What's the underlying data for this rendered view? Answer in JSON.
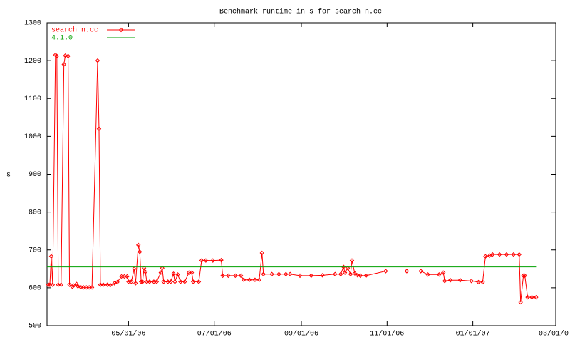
{
  "chart_data": {
    "type": "line",
    "title": "Benchmark runtime in s for search n.cc",
    "y_label": "s",
    "xlim": [
      "2006-03-04",
      "2007-03-01"
    ],
    "xticks": [
      {
        "value": "2006-05-01",
        "label": "05/01/06"
      },
      {
        "value": "2006-07-01",
        "label": "07/01/06"
      },
      {
        "value": "2006-09-01",
        "label": "09/01/06"
      },
      {
        "value": "2006-11-01",
        "label": "11/01/06"
      },
      {
        "value": "2007-01-01",
        "label": "01/01/07"
      },
      {
        "value": "2007-03-01",
        "label": "03/01/07"
      }
    ],
    "ylim": [
      500,
      1300
    ],
    "yticks": [
      500,
      600,
      700,
      800,
      900,
      1000,
      1100,
      1200,
      1300
    ],
    "grid": false,
    "legend": "top-left",
    "series": [
      {
        "name": "search n.cc",
        "color": "#ff0000",
        "markers": true,
        "x": [
          "2006-03-05",
          "2006-03-06",
          "2006-03-07",
          "2006-03-08",
          "2006-03-10",
          "2006-03-11",
          "2006-03-12",
          "2006-03-14",
          "2006-03-16",
          "2006-03-17",
          "2006-03-19",
          "2006-03-20",
          "2006-03-22",
          "2006-03-23",
          "2006-03-25",
          "2006-03-26",
          "2006-03-28",
          "2006-03-30",
          "2006-04-01",
          "2006-04-03",
          "2006-04-05",
          "2006-04-09",
          "2006-04-10",
          "2006-04-11",
          "2006-04-13",
          "2006-04-16",
          "2006-04-18",
          "2006-04-21",
          "2006-04-23",
          "2006-04-26",
          "2006-04-28",
          "2006-04-30",
          "2006-05-01",
          "2006-05-03",
          "2006-05-05",
          "2006-05-06",
          "2006-05-08",
          "2006-05-09",
          "2006-05-10",
          "2006-05-11",
          "2006-05-12",
          "2006-05-13",
          "2006-05-14",
          "2006-05-16",
          "2006-05-19",
          "2006-05-21",
          "2006-05-24",
          "2006-05-25",
          "2006-05-26",
          "2006-05-29",
          "2006-05-31",
          "2006-06-02",
          "2006-06-03",
          "2006-06-05",
          "2006-06-07",
          "2006-06-10",
          "2006-06-13",
          "2006-06-15",
          "2006-06-16",
          "2006-06-20",
          "2006-06-22",
          "2006-06-25",
          "2006-06-30",
          "2006-07-06",
          "2006-07-07",
          "2006-07-11",
          "2006-07-16",
          "2006-07-20",
          "2006-07-22",
          "2006-07-26",
          "2006-07-30",
          "2006-08-02",
          "2006-08-04",
          "2006-08-05",
          "2006-08-11",
          "2006-08-16",
          "2006-08-21",
          "2006-08-24",
          "2006-08-31",
          "2006-09-08",
          "2006-09-16",
          "2006-09-25",
          "2006-09-29",
          "2006-10-01",
          "2006-10-02",
          "2006-10-04",
          "2006-10-06",
          "2006-10-07",
          "2006-10-09",
          "2006-10-11",
          "2006-10-13",
          "2006-10-17",
          "2006-10-31",
          "2006-11-15",
          "2006-11-25",
          "2006-11-30",
          "2006-12-08",
          "2006-12-11",
          "2006-12-12",
          "2006-12-16",
          "2006-12-23",
          "2006-12-31",
          "2007-01-05",
          "2007-01-08",
          "2007-01-10",
          "2007-01-13",
          "2007-01-15",
          "2007-01-20",
          "2007-01-25",
          "2007-01-30",
          "2007-02-03",
          "2007-02-04",
          "2007-02-06",
          "2007-02-07",
          "2007-02-09",
          "2007-02-12",
          "2007-02-15"
        ],
        "values": [
          608,
          608,
          683,
          608,
          1215,
          1212,
          608,
          608,
          1190,
          1213,
          1212,
          608,
          603,
          606,
          610,
          604,
          602,
          601,
          601,
          601,
          601,
          1200,
          1020,
          608,
          608,
          608,
          607,
          612,
          615,
          630,
          630,
          630,
          616,
          616,
          650,
          612,
          713,
          695,
          616,
          616,
          652,
          642,
          616,
          616,
          616,
          616,
          640,
          652,
          616,
          616,
          616,
          637,
          616,
          635,
          616,
          616,
          640,
          640,
          616,
          616,
          672,
          672,
          672,
          673,
          632,
          632,
          632,
          632,
          621,
          621,
          621,
          621,
          692,
          636,
          636,
          636,
          636,
          636,
          632,
          632,
          633,
          636,
          636,
          655,
          640,
          652,
          636,
          672,
          638,
          633,
          632,
          632,
          644,
          644,
          644,
          635,
          635,
          640,
          618,
          620,
          620,
          618,
          615,
          615,
          683,
          685,
          688,
          688,
          688,
          688,
          688,
          562,
          632,
          632,
          575,
          575,
          575
        ]
      },
      {
        "name": "4.1.0",
        "color": "#00a000",
        "markers": false,
        "x": [
          "2006-03-04",
          "2007-02-15"
        ],
        "values": [
          655,
          655
        ]
      }
    ]
  }
}
